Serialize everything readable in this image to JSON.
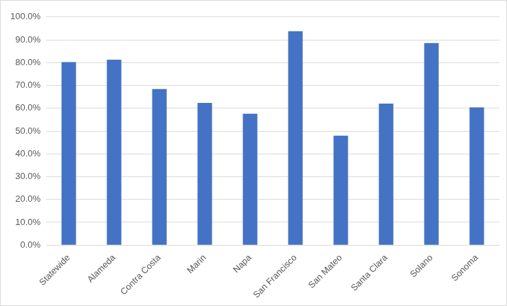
{
  "chart_data": {
    "type": "bar",
    "categories": [
      "Statewide",
      "Alameda",
      "Contra Costa",
      "Marin",
      "Napa",
      "San Francisco",
      "San Mateo",
      "Santa Clara",
      "Solano",
      "Sonoma"
    ],
    "values": [
      80.2,
      81.3,
      68.4,
      62.3,
      57.6,
      93.8,
      48.0,
      62.0,
      88.6,
      60.4
    ],
    "color": "#4472c4",
    "ylim": [
      0,
      100
    ],
    "yticks": [
      {
        "value": 0,
        "label": "0.0%"
      },
      {
        "value": 10,
        "label": "10.0%"
      },
      {
        "value": 20,
        "label": "20.0%"
      },
      {
        "value": 30,
        "label": "30.0%"
      },
      {
        "value": 40,
        "label": "40.0%"
      },
      {
        "value": 50,
        "label": "50.0%"
      },
      {
        "value": 60,
        "label": "60.0%"
      },
      {
        "value": 70,
        "label": "70.0%"
      },
      {
        "value": 80,
        "label": "80.0%"
      },
      {
        "value": 90,
        "label": "90.0%"
      },
      {
        "value": 100,
        "label": "100.0%"
      }
    ],
    "grid": true
  }
}
